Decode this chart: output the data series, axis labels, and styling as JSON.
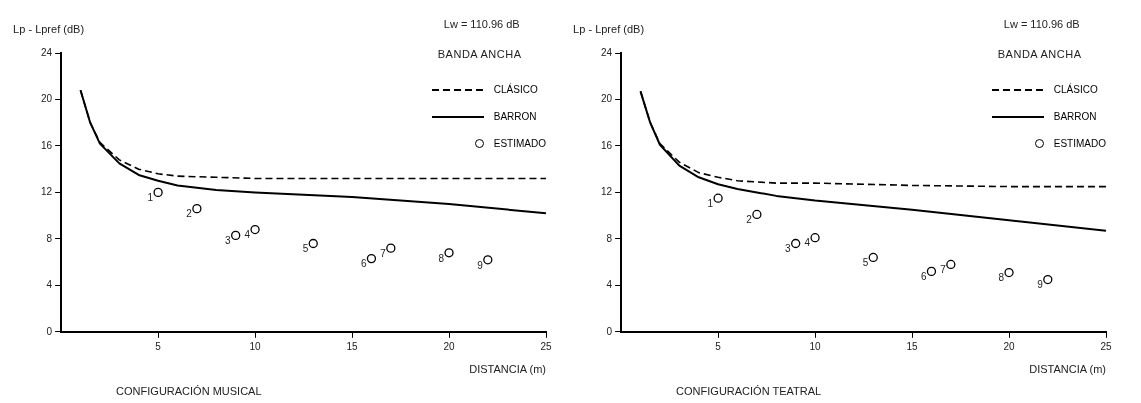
{
  "chart_data": [
    {
      "type": "line",
      "title": "CONFIGURACIÓN MUSICAL",
      "xlabel": "DISTANCIA (m)",
      "ylabel": "Lp - Lpref (dB)",
      "legend_title": "BANDA ANCHA",
      "legend": "top right",
      "grid": false,
      "xlim": [
        0,
        25
      ],
      "xticks": [
        5,
        10,
        15,
        20,
        25
      ],
      "ylim": [
        0,
        24
      ],
      "yticks": [
        0,
        4,
        8,
        12,
        16,
        20,
        24
      ],
      "series": [
        {
          "name": "CLÁSICO",
          "type": "line",
          "line_style": "dashed",
          "color": "#000000",
          "x": [
            1,
            1.5,
            2,
            3,
            4,
            5,
            6,
            8,
            10,
            15,
            20,
            25
          ],
          "values": [
            20.8,
            18,
            16.3,
            14.8,
            14,
            13.6,
            13.4,
            13.3,
            13.2,
            13.2,
            13.2,
            13.2
          ]
        },
        {
          "name": "BARRON",
          "type": "line",
          "line_style": "solid",
          "color": "#000000",
          "x": [
            1,
            1.5,
            2,
            3,
            4,
            5,
            6,
            7,
            8,
            10,
            15,
            20,
            25
          ],
          "values": [
            20.8,
            18,
            16.2,
            14.5,
            13.5,
            13,
            12.6,
            12.4,
            12.2,
            12,
            11.6,
            11,
            10.2
          ]
        },
        {
          "name": "ESTIMADO",
          "type": "scatter",
          "marker": "circle",
          "color": "#000000",
          "x": [
            5,
            7,
            9,
            10,
            13,
            16,
            17,
            20,
            22
          ],
          "values": [
            12,
            10.6,
            8.3,
            8.8,
            7.6,
            6.3,
            7.2,
            6.8,
            6.2
          ]
        }
      ],
      "annotations": [
        "Lw = 110.96 dB",
        {
          "text": "1",
          "x": 5,
          "y": 12
        },
        {
          "text": "2",
          "x": 7,
          "y": 10.6
        },
        {
          "text": "3",
          "x": 9,
          "y": 8.3
        },
        {
          "text": "4",
          "x": 10,
          "y": 8.8
        },
        {
          "text": "5",
          "x": 13,
          "y": 7.6
        },
        {
          "text": "6",
          "x": 16,
          "y": 6.3
        },
        {
          "text": "7",
          "x": 17,
          "y": 7.2
        },
        {
          "text": "8",
          "x": 20,
          "y": 6.8
        },
        {
          "text": "9",
          "x": 22,
          "y": 6.2
        }
      ]
    },
    {
      "type": "line",
      "title": "CONFIGURACIÓN TEATRAL",
      "xlabel": "DISTANCIA (m)",
      "ylabel": "Lp - Lpref (dB)",
      "legend_title": "BANDA ANCHA",
      "legend": "top right",
      "grid": false,
      "xlim": [
        0,
        25
      ],
      "xticks": [
        5,
        10,
        15,
        20,
        25
      ],
      "ylim": [
        0,
        24
      ],
      "yticks": [
        0,
        4,
        8,
        12,
        16,
        20,
        24
      ],
      "series": [
        {
          "name": "CLÁSICO",
          "type": "line",
          "line_style": "dashed",
          "color": "#000000",
          "x": [
            1,
            1.5,
            2,
            3,
            4,
            5,
            6,
            8,
            10,
            15,
            20,
            25
          ],
          "values": [
            20.7,
            18,
            16.2,
            14.6,
            13.7,
            13.3,
            13,
            12.8,
            12.8,
            12.6,
            12.5,
            12.5
          ]
        },
        {
          "name": "BARRON",
          "type": "line",
          "line_style": "solid",
          "color": "#000000",
          "x": [
            1,
            1.5,
            2,
            3,
            4,
            5,
            6,
            7,
            8,
            10,
            15,
            20,
            25
          ],
          "values": [
            20.7,
            18,
            16.1,
            14.3,
            13.3,
            12.7,
            12.3,
            12,
            11.7,
            11.3,
            10.5,
            9.6,
            8.7
          ]
        },
        {
          "name": "ESTIMADO",
          "type": "scatter",
          "marker": "circle",
          "color": "#000000",
          "x": [
            5,
            7,
            9,
            10,
            13,
            16,
            17,
            20,
            22
          ],
          "values": [
            11.5,
            10.1,
            7.6,
            8.1,
            6.4,
            5.2,
            5.8,
            5.1,
            4.5
          ]
        }
      ],
      "annotations": [
        "Lw = 110.96 dB",
        {
          "text": "1",
          "x": 5,
          "y": 11.5
        },
        {
          "text": "2",
          "x": 7,
          "y": 10.1
        },
        {
          "text": "3",
          "x": 9,
          "y": 7.6
        },
        {
          "text": "4",
          "x": 10,
          "y": 8.1
        },
        {
          "text": "5",
          "x": 13,
          "y": 6.4
        },
        {
          "text": "6",
          "x": 16,
          "y": 5.2
        },
        {
          "text": "7",
          "x": 17,
          "y": 5.8
        },
        {
          "text": "8",
          "x": 20,
          "y": 5.1
        },
        {
          "text": "9",
          "x": 22,
          "y": 4.5
        }
      ]
    }
  ]
}
